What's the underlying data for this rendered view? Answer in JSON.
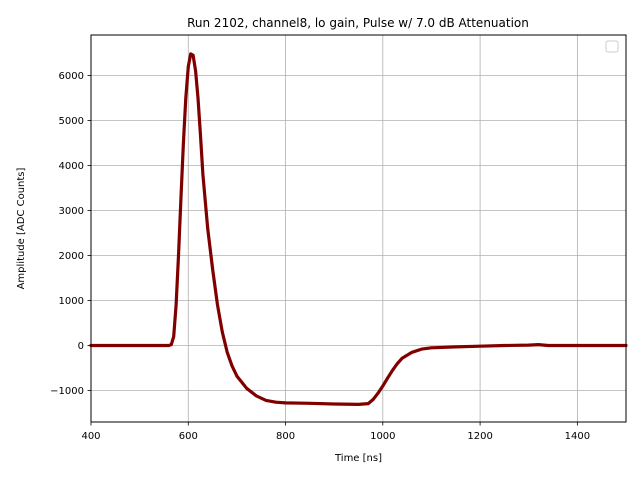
{
  "chart_data": {
    "type": "scatter",
    "title": "Run 2102, channel8, lo gain, Pulse w/ 7.0 dB Attenuation",
    "xlabel": "Time [ns]",
    "ylabel": "Amplitude [ADC Counts]",
    "xlim": [
      400,
      1500
    ],
    "ylim": [
      -1700,
      6900
    ],
    "xticks": [
      400,
      600,
      800,
      1000,
      1200,
      1400
    ],
    "yticks": [
      -1000,
      0,
      1000,
      2000,
      3000,
      4000,
      5000,
      6000
    ],
    "ytick_labels": [
      "−1000",
      "0",
      "1000",
      "2000",
      "3000",
      "4000",
      "5000",
      "6000"
    ],
    "grid": true,
    "legend": "top-right (empty)",
    "series": [
      {
        "color": "#800000",
        "points": [
          [
            400,
            0
          ],
          [
            540,
            0
          ],
          [
            560,
            0
          ],
          [
            565,
            20
          ],
          [
            570,
            200
          ],
          [
            575,
            900
          ],
          [
            580,
            2000
          ],
          [
            585,
            3300
          ],
          [
            590,
            4500
          ],
          [
            595,
            5500
          ],
          [
            600,
            6200
          ],
          [
            605,
            6480
          ],
          [
            610,
            6450
          ],
          [
            615,
            6100
          ],
          [
            620,
            5500
          ],
          [
            625,
            4700
          ],
          [
            630,
            3800
          ],
          [
            640,
            2600
          ],
          [
            650,
            1700
          ],
          [
            660,
            900
          ],
          [
            670,
            300
          ],
          [
            680,
            -150
          ],
          [
            690,
            -450
          ],
          [
            700,
            -680
          ],
          [
            720,
            -950
          ],
          [
            740,
            -1120
          ],
          [
            760,
            -1220
          ],
          [
            780,
            -1260
          ],
          [
            800,
            -1275
          ],
          [
            850,
            -1285
          ],
          [
            900,
            -1300
          ],
          [
            950,
            -1310
          ],
          [
            970,
            -1290
          ],
          [
            980,
            -1200
          ],
          [
            990,
            -1060
          ],
          [
            1000,
            -900
          ],
          [
            1010,
            -720
          ],
          [
            1020,
            -550
          ],
          [
            1030,
            -400
          ],
          [
            1040,
            -280
          ],
          [
            1060,
            -150
          ],
          [
            1080,
            -80
          ],
          [
            1100,
            -50
          ],
          [
            1150,
            -30
          ],
          [
            1200,
            -15
          ],
          [
            1250,
            0
          ],
          [
            1300,
            10
          ],
          [
            1320,
            20
          ],
          [
            1340,
            0
          ],
          [
            1400,
            0
          ],
          [
            1500,
            0
          ]
        ]
      }
    ]
  }
}
